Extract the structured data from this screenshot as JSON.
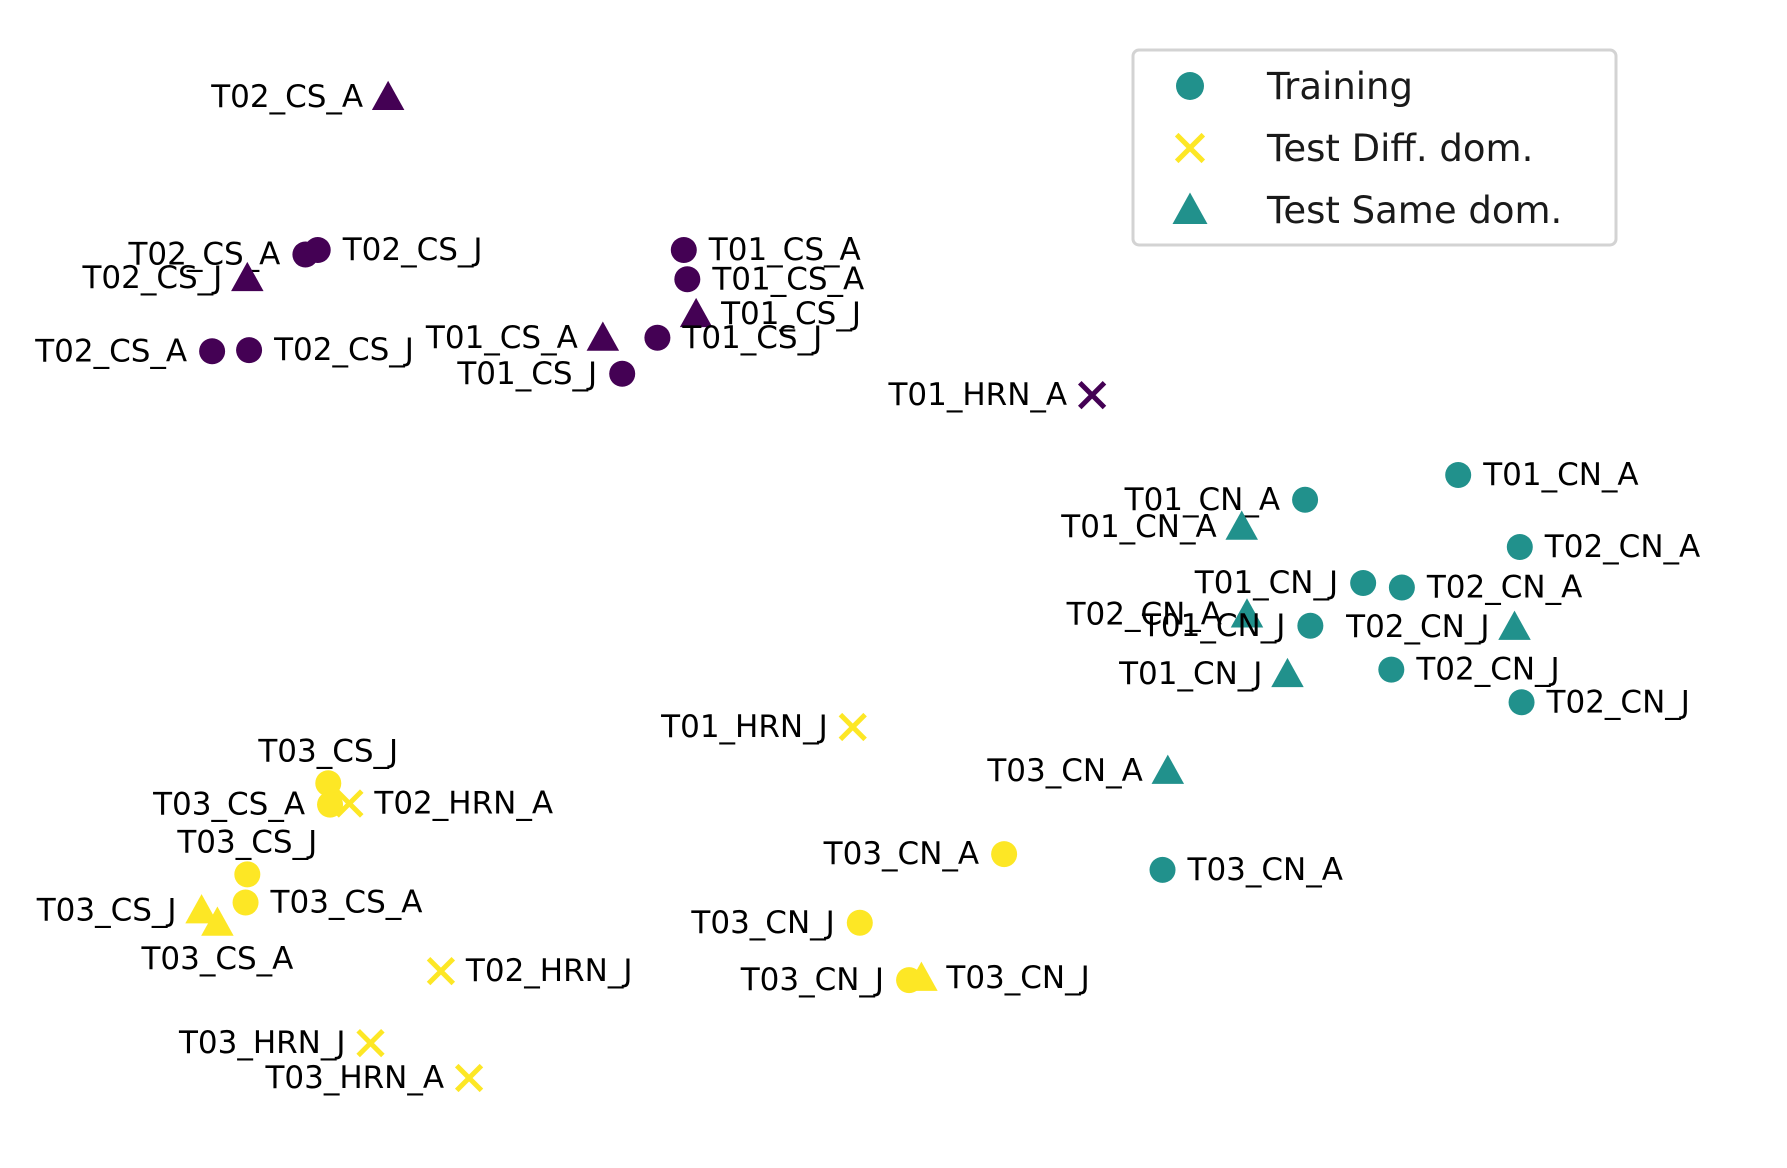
{
  "chart_data": {
    "type": "scatter",
    "title": "",
    "xlabel": "",
    "ylabel": "",
    "axes_visible": false,
    "grid": false,
    "xlim": [
      0,
      100
    ],
    "ylim": [
      0,
      100
    ],
    "legend": {
      "placement": "top-right",
      "entries": [
        {
          "label": "Training",
          "marker": "circle",
          "color": "#21918c"
        },
        {
          "label": "Test Diff. dom.",
          "marker": "x",
          "color": "#fde725"
        },
        {
          "label": "Test Same dom.",
          "marker": "triangle",
          "color": "#21918c"
        }
      ]
    },
    "colors": {
      "purple": "#440154",
      "teal": "#21918c",
      "yellow": "#fde725"
    },
    "points": [
      {
        "label": "T02_CS_A",
        "x": 21.2,
        "y": 93.6,
        "marker": "triangle",
        "color": "purple"
      },
      {
        "label": "T02_CS_A",
        "x": 16.5,
        "y": 79.6,
        "marker": "circle",
        "color": "purple"
      },
      {
        "label": "T02_CS_J",
        "x": 17.2,
        "y": 80.0,
        "marker": "circle",
        "color": "purple"
      },
      {
        "label": "T02_CS_J",
        "x": 13.2,
        "y": 77.5,
        "marker": "triangle",
        "color": "purple"
      },
      {
        "label": "T02_CS_A",
        "x": 11.2,
        "y": 71.0,
        "marker": "circle",
        "color": "purple"
      },
      {
        "label": "T02_CS_J",
        "x": 13.3,
        "y": 71.1,
        "marker": "circle",
        "color": "purple"
      },
      {
        "label": "T01_CS_A",
        "x": 38.0,
        "y": 80.0,
        "marker": "circle",
        "color": "purple"
      },
      {
        "label": "T01_CS_A",
        "x": 38.2,
        "y": 77.4,
        "marker": "circle",
        "color": "purple"
      },
      {
        "label": "T01_CS_J",
        "x": 38.7,
        "y": 74.3,
        "marker": "triangle",
        "color": "purple"
      },
      {
        "label": "T01_CS_A",
        "x": 33.4,
        "y": 72.2,
        "marker": "triangle",
        "color": "purple"
      },
      {
        "label": "T01_CS_J",
        "x": 36.5,
        "y": 72.2,
        "marker": "circle",
        "color": "purple"
      },
      {
        "label": "T01_CS_J",
        "x": 34.5,
        "y": 69.0,
        "marker": "circle",
        "color": "purple"
      },
      {
        "label": "T01_HRN_A",
        "x": 61.2,
        "y": 67.1,
        "marker": "x",
        "color": "purple"
      },
      {
        "label": "T01_CN_A",
        "x": 73.3,
        "y": 57.8,
        "marker": "circle",
        "color": "teal"
      },
      {
        "label": "T01_CN_A",
        "x": 82.0,
        "y": 60.0,
        "marker": "circle",
        "color": "teal"
      },
      {
        "label": "T01_CN_A",
        "x": 69.7,
        "y": 55.4,
        "marker": "triangle",
        "color": "teal"
      },
      {
        "label": "T02_CN_A",
        "x": 85.5,
        "y": 53.6,
        "marker": "circle",
        "color": "teal"
      },
      {
        "label": "T01_CN_J",
        "x": 76.6,
        "y": 50.4,
        "marker": "circle",
        "color": "teal"
      },
      {
        "label": "T02_CN_A",
        "x": 78.8,
        "y": 50.0,
        "marker": "circle",
        "color": "teal"
      },
      {
        "label": "T02_CN_A",
        "x": 70.0,
        "y": 47.6,
        "marker": "triangle",
        "color": "teal"
      },
      {
        "label": "T01_CN_J",
        "x": 73.6,
        "y": 46.6,
        "marker": "circle",
        "color": "teal"
      },
      {
        "label": "T02_CN_J",
        "x": 85.2,
        "y": 46.5,
        "marker": "triangle",
        "color": "teal"
      },
      {
        "label": "T01_CN_J",
        "x": 72.3,
        "y": 42.3,
        "marker": "triangle",
        "color": "teal"
      },
      {
        "label": "T02_CN_J",
        "x": 78.2,
        "y": 42.7,
        "marker": "circle",
        "color": "teal"
      },
      {
        "label": "T02_CN_J",
        "x": 85.6,
        "y": 39.8,
        "marker": "circle",
        "color": "teal"
      },
      {
        "label": "T01_HRN_J",
        "x": 47.6,
        "y": 37.6,
        "marker": "x",
        "color": "yellow"
      },
      {
        "label": "T03_CN_A",
        "x": 65.5,
        "y": 33.7,
        "marker": "triangle",
        "color": "teal"
      },
      {
        "label": "T03_CN_A",
        "x": 56.2,
        "y": 26.3,
        "marker": "circle",
        "color": "yellow"
      },
      {
        "label": "T03_CN_A",
        "x": 65.2,
        "y": 24.9,
        "marker": "circle",
        "color": "teal"
      },
      {
        "label": "T03_CN_J",
        "x": 48.0,
        "y": 20.2,
        "marker": "circle",
        "color": "yellow"
      },
      {
        "label": "T03_CN_J",
        "x": 50.8,
        "y": 15.1,
        "marker": "circle",
        "color": "yellow"
      },
      {
        "label": "T03_CN_J",
        "x": 51.5,
        "y": 15.3,
        "marker": "triangle",
        "color": "yellow"
      },
      {
        "label": "T03_CS_J",
        "x": 17.8,
        "y": 32.6,
        "marker": "circle",
        "color": "yellow"
      },
      {
        "label": "T03_CS_A",
        "x": 17.9,
        "y": 30.7,
        "marker": "circle",
        "color": "yellow"
      },
      {
        "label": "T02_HRN_A",
        "x": 19.0,
        "y": 30.8,
        "marker": "x",
        "color": "yellow"
      },
      {
        "label": "T03_CS_J",
        "x": 13.2,
        "y": 24.5,
        "marker": "circle",
        "color": "yellow"
      },
      {
        "label": "T03_CS_J",
        "x": 10.6,
        "y": 21.3,
        "marker": "triangle",
        "color": "yellow"
      },
      {
        "label": "T03_CS_A",
        "x": 13.1,
        "y": 22.0,
        "marker": "circle",
        "color": "yellow"
      },
      {
        "label": "T03_CS_A",
        "x": 11.5,
        "y": 20.2,
        "marker": "triangle",
        "color": "yellow"
      },
      {
        "label": "T02_HRN_J",
        "x": 24.2,
        "y": 15.9,
        "marker": "x",
        "color": "yellow"
      },
      {
        "label": "T03_HRN_J",
        "x": 20.2,
        "y": 9.5,
        "marker": "x",
        "color": "yellow"
      },
      {
        "label": "T03_HRN_A",
        "x": 25.8,
        "y": 6.4,
        "marker": "x",
        "color": "yellow"
      }
    ]
  }
}
